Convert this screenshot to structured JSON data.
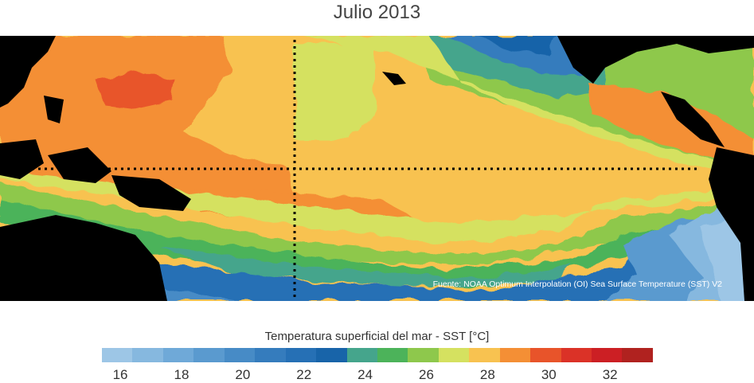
{
  "title": "Julio 2013",
  "source_text": "Fuente: NOAA Optimum Interpolation (OI) Sea Surface Temperature (SST) V2",
  "colorbar": {
    "label": "Temperatura superficial del mar - SST  [°C]",
    "colors": [
      "#9dc6e6",
      "#86b8df",
      "#6fa9d8",
      "#5a9acf",
      "#478bc6",
      "#357cbd",
      "#2670b5",
      "#1864a9",
      "#45a58c",
      "#4cb35a",
      "#8ec84c",
      "#d5e160",
      "#f8c250",
      "#f48f35",
      "#e8542a",
      "#db3227",
      "#cc1f24",
      "#b0221f"
    ],
    "ticks": [
      "16",
      "18",
      "20",
      "22",
      "24",
      "26",
      "28",
      "30",
      "32"
    ]
  }
}
